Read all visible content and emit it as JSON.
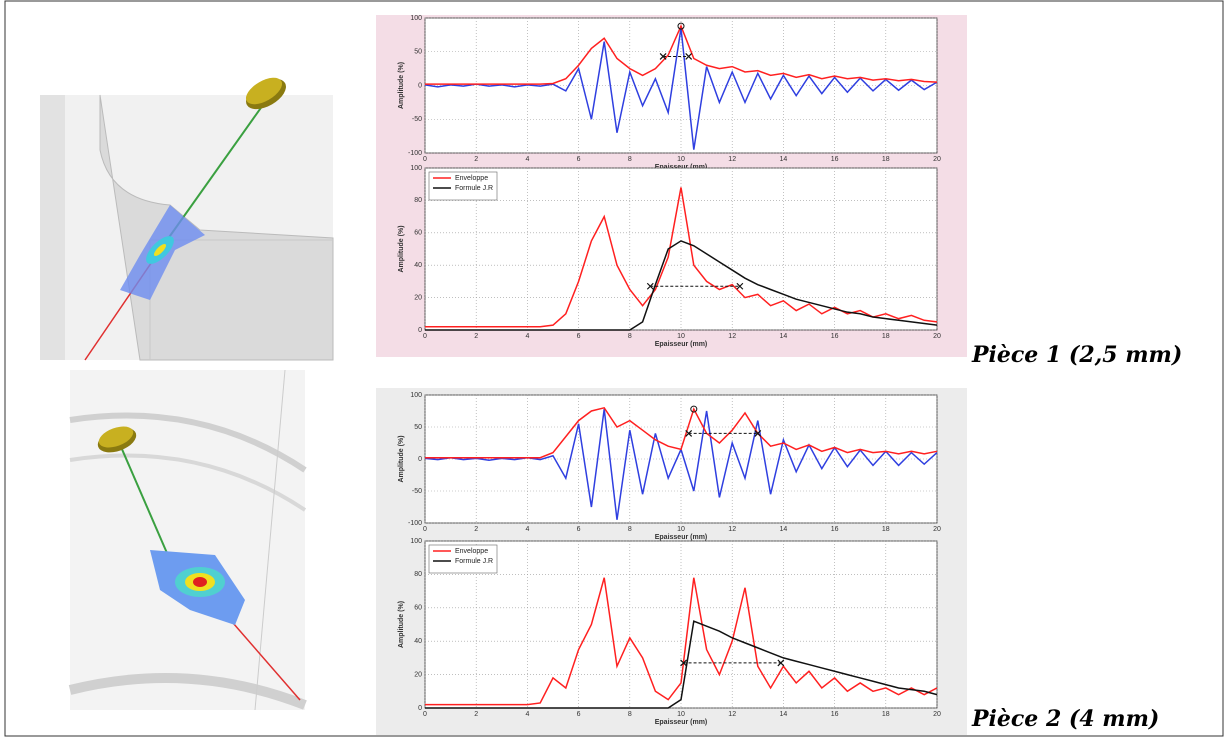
{
  "captions": [
    "Pièce 1 (2,5 mm)",
    "Pièce 2 (4 mm)"
  ],
  "chart_data": [
    {
      "type": "line",
      "xlabel": "Epaisseur (mm)",
      "ylabel": "Amplitude (%)",
      "x": [
        0,
        0.5,
        1,
        1.5,
        2,
        2.5,
        3,
        3.5,
        4,
        4.5,
        5,
        5.5,
        6,
        6.5,
        7,
        7.5,
        8,
        8.5,
        9,
        9.5,
        10,
        10.5,
        11,
        11.5,
        12,
        12.5,
        13,
        13.5,
        14,
        14.5,
        15,
        15.5,
        16,
        16.5,
        17,
        17.5,
        18,
        18.5,
        19,
        19.5,
        20
      ],
      "xlim": [
        0,
        20
      ],
      "xticks": [
        0,
        2,
        4,
        6,
        8,
        10,
        12,
        14,
        16,
        18,
        20
      ],
      "ylim": [
        -100,
        100
      ],
      "yticks": [
        -100,
        -50,
        0,
        50,
        100
      ],
      "grid": true,
      "series": [
        {
          "color": "#2f3fe0",
          "values": [
            1,
            -2,
            1,
            -1,
            2,
            -1,
            1,
            -2,
            1,
            -1,
            2,
            -8,
            25,
            -50,
            65,
            -70,
            20,
            -30,
            10,
            -40,
            85,
            -95,
            28,
            -25,
            20,
            -25,
            18,
            -20,
            15,
            -15,
            14,
            -12,
            12,
            -10,
            11,
            -8,
            9,
            -7,
            8,
            -6,
            5
          ]
        },
        {
          "color": "#ff2020",
          "values": [
            2,
            2,
            2,
            2,
            2,
            2,
            2,
            2,
            2,
            2,
            3,
            10,
            30,
            55,
            70,
            40,
            25,
            15,
            25,
            45,
            88,
            40,
            30,
            25,
            28,
            20,
            22,
            15,
            18,
            12,
            16,
            10,
            14,
            10,
            12,
            8,
            10,
            7,
            9,
            6,
            5
          ]
        }
      ],
      "markers": {
        "x": [
          9.3,
          10.3
        ],
        "y": [
          43,
          43
        ]
      },
      "peak": {
        "x": 10,
        "y": 88
      }
    },
    {
      "type": "line",
      "xlabel": "Epaisseur (mm)",
      "ylabel": "Amplitude (%)",
      "legend": "upper left",
      "x": [
        0,
        0.5,
        1,
        1.5,
        2,
        2.5,
        3,
        3.5,
        4,
        4.5,
        5,
        5.5,
        6,
        6.5,
        7,
        7.5,
        8,
        8.5,
        9,
        9.5,
        10,
        10.5,
        11,
        11.5,
        12,
        12.5,
        13,
        13.5,
        14,
        14.5,
        15,
        15.5,
        16,
        16.5,
        17,
        17.5,
        18,
        18.5,
        19,
        19.5,
        20
      ],
      "xlim": [
        0,
        20
      ],
      "xticks": [
        0,
        2,
        4,
        6,
        8,
        10,
        12,
        14,
        16,
        18,
        20
      ],
      "ylim": [
        0,
        100
      ],
      "yticks": [
        0,
        20,
        40,
        60,
        80,
        100
      ],
      "grid": true,
      "series": [
        {
          "name": "Enveloppe",
          "color": "#ff2020",
          "values": [
            2,
            2,
            2,
            2,
            2,
            2,
            2,
            2,
            2,
            2,
            3,
            10,
            30,
            55,
            70,
            40,
            25,
            15,
            25,
            45,
            88,
            40,
            30,
            25,
            28,
            20,
            22,
            15,
            18,
            12,
            16,
            10,
            14,
            10,
            12,
            8,
            10,
            7,
            9,
            6,
            5
          ]
        },
        {
          "name": "Formule J.R",
          "color": "#111111",
          "values": [
            0,
            0,
            0,
            0,
            0,
            0,
            0,
            0,
            0,
            0,
            0,
            0,
            0,
            0,
            0,
            0,
            0,
            5,
            28,
            50,
            55,
            52,
            47,
            42,
            37,
            32,
            28,
            25,
            22,
            19,
            17,
            15,
            13,
            11,
            10,
            8,
            7,
            6,
            5,
            4,
            3
          ]
        }
      ],
      "markers": {
        "x": [
          8.8,
          12.3
        ],
        "y": [
          27,
          27
        ]
      }
    },
    {
      "type": "line",
      "xlabel": "Epaisseur (mm)",
      "ylabel": "Amplitude (%)",
      "x": [
        0,
        0.5,
        1,
        1.5,
        2,
        2.5,
        3,
        3.5,
        4,
        4.5,
        5,
        5.5,
        6,
        6.5,
        7,
        7.5,
        8,
        8.5,
        9,
        9.5,
        10,
        10.5,
        11,
        11.5,
        12,
        12.5,
        13,
        13.5,
        14,
        14.5,
        15,
        15.5,
        16,
        16.5,
        17,
        17.5,
        18,
        18.5,
        19,
        19.5,
        20
      ],
      "xlim": [
        0,
        20
      ],
      "xticks": [
        0,
        2,
        4,
        6,
        8,
        10,
        12,
        14,
        16,
        18,
        20
      ],
      "ylim": [
        -100,
        100
      ],
      "yticks": [
        -100,
        -50,
        0,
        50,
        100
      ],
      "grid": true,
      "series": [
        {
          "color": "#2f3fe0",
          "values": [
            1,
            -1,
            2,
            -1,
            1,
            -2,
            1,
            -1,
            2,
            -1,
            5,
            -30,
            55,
            -75,
            78,
            -95,
            45,
            -55,
            40,
            -30,
            15,
            -50,
            75,
            -60,
            25,
            -30,
            60,
            -55,
            30,
            -20,
            22,
            -15,
            18,
            -12,
            14,
            -10,
            12,
            -10,
            10,
            -8,
            10
          ]
        },
        {
          "color": "#ff2020",
          "values": [
            2,
            2,
            2,
            2,
            2,
            2,
            2,
            2,
            2,
            2,
            10,
            35,
            60,
            75,
            80,
            50,
            60,
            45,
            30,
            20,
            15,
            78,
            40,
            25,
            45,
            72,
            40,
            20,
            25,
            15,
            22,
            12,
            18,
            10,
            15,
            10,
            12,
            8,
            12,
            8,
            12
          ]
        }
      ],
      "markers": {
        "x": [
          10.3,
          13
        ],
        "y": [
          40,
          40
        ]
      },
      "peak": {
        "x": 10.5,
        "y": 78
      }
    },
    {
      "type": "line",
      "xlabel": "Epaisseur (mm)",
      "ylabel": "Amplitude (%)",
      "legend": "upper left",
      "x": [
        0,
        0.5,
        1,
        1.5,
        2,
        2.5,
        3,
        3.5,
        4,
        4.5,
        5,
        5.5,
        6,
        6.5,
        7,
        7.5,
        8,
        8.5,
        9,
        9.5,
        10,
        10.5,
        11,
        11.5,
        12,
        12.5,
        13,
        13.5,
        14,
        14.5,
        15,
        15.5,
        16,
        16.5,
        17,
        17.5,
        18,
        18.5,
        19,
        19.5,
        20
      ],
      "xlim": [
        0,
        20
      ],
      "xticks": [
        0,
        2,
        4,
        6,
        8,
        10,
        12,
        14,
        16,
        18,
        20
      ],
      "ylim": [
        0,
        100
      ],
      "yticks": [
        0,
        20,
        40,
        60,
        80,
        100
      ],
      "grid": true,
      "series": [
        {
          "name": "Enveloppe",
          "color": "#ff2020",
          "values": [
            2,
            2,
            2,
            2,
            2,
            2,
            2,
            2,
            2,
            3,
            18,
            12,
            35,
            50,
            78,
            25,
            42,
            30,
            10,
            5,
            15,
            78,
            35,
            20,
            40,
            72,
            25,
            12,
            25,
            15,
            22,
            12,
            18,
            10,
            15,
            10,
            12,
            8,
            12,
            8,
            12
          ]
        },
        {
          "name": "Formule J.R",
          "color": "#111111",
          "values": [
            0,
            0,
            0,
            0,
            0,
            0,
            0,
            0,
            0,
            0,
            0,
            0,
            0,
            0,
            0,
            0,
            0,
            0,
            0,
            0,
            5,
            52,
            49,
            46,
            42,
            39,
            36,
            33,
            30,
            28,
            26,
            24,
            22,
            20,
            18,
            16,
            14,
            12,
            11,
            10,
            8
          ]
        }
      ],
      "markers": {
        "x": [
          10.1,
          13.9
        ],
        "y": [
          27,
          27
        ]
      }
    }
  ]
}
